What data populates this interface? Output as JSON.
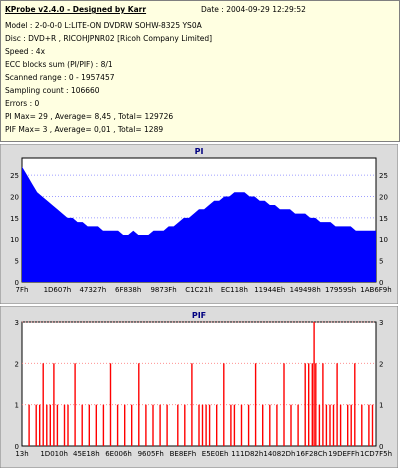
{
  "info": {
    "title": "KProbe v2.4.0 - Designed by Karr",
    "date": "Date : 2004-09-29 12:29:52",
    "lines": [
      "Model : 2-0-0-0 L:LITE-ON DVDRW SOHW-8325  YS0A",
      "Disc : DVD+R , RICOHJPNR02 [Ricoh Company Limited]",
      "Speed : 4x",
      "ECC blocks sum (PI/PIF) : 8/1",
      "Scanned range : 0 - 1957457",
      "Sampling count : 106660",
      "Errors : 0",
      "PI Max= 29 ,  Average= 8,45 ,  Total= 129726",
      "PIF Max= 3 ,  Average= 0,01 ,  Total= 1289"
    ]
  },
  "colors": {
    "panel_bg": "#ffffe1",
    "chart_bg": "#ffffff",
    "frame_bg": "#dcdcdc",
    "pi_fill": "#0000ff",
    "pif_fill": "#ff0000",
    "pi_grid": "#8080ff",
    "pif_grid": "#ff8080",
    "title_color": "#000080"
  },
  "chart_data": [
    {
      "type": "area",
      "title": "PI",
      "ylim": [
        0,
        29
      ],
      "yticks": [
        0,
        5,
        10,
        15,
        20,
        25
      ],
      "x_tick_labels": [
        "7Fh",
        "1D607h",
        "47327h",
        "6F838h",
        "9873Fh",
        "C1C21h",
        "EC118h",
        "11944Eh",
        "149498h",
        "17959Sh",
        "1AB6F9h"
      ],
      "grid": true,
      "series": [
        {
          "values": [
            27,
            25,
            23,
            21,
            20,
            19,
            18,
            17,
            16,
            15,
            15,
            14,
            14,
            13,
            13,
            13,
            12,
            12,
            12,
            12,
            11,
            11,
            12,
            11,
            11,
            11,
            12,
            12,
            12,
            13,
            13,
            14,
            15,
            15,
            16,
            17,
            17,
            18,
            19,
            19,
            20,
            20,
            21,
            21,
            21,
            20,
            20,
            19,
            19,
            18,
            18,
            17,
            17,
            17,
            16,
            16,
            16,
            15,
            15,
            14,
            14,
            14,
            13,
            13,
            13,
            13,
            12,
            12,
            12,
            12,
            12
          ]
        }
      ]
    },
    {
      "type": "bar",
      "title": "PIF",
      "ylim": [
        0,
        3
      ],
      "yticks": [
        0,
        1,
        2,
        3
      ],
      "x_tick_labels": [
        "13h",
        "1D010h",
        "45E18h",
        "6E006h",
        "9605Fh",
        "BE8EFh",
        "E5E0Eh",
        "111D82h",
        "14082Dh",
        "16F28Ch",
        "19DEFFh",
        "1CD7F5h"
      ],
      "grid": true,
      "series": [
        {
          "points": [
            [
              0.02,
              1
            ],
            [
              0.04,
              1
            ],
            [
              0.05,
              1
            ],
            [
              0.06,
              2
            ],
            [
              0.07,
              1
            ],
            [
              0.08,
              1
            ],
            [
              0.09,
              2
            ],
            [
              0.1,
              1
            ],
            [
              0.12,
              1
            ],
            [
              0.13,
              1
            ],
            [
              0.15,
              2
            ],
            [
              0.17,
              1
            ],
            [
              0.19,
              1
            ],
            [
              0.21,
              1
            ],
            [
              0.23,
              1
            ],
            [
              0.25,
              2
            ],
            [
              0.27,
              1
            ],
            [
              0.29,
              1
            ],
            [
              0.31,
              1
            ],
            [
              0.33,
              2
            ],
            [
              0.35,
              1
            ],
            [
              0.37,
              1
            ],
            [
              0.39,
              1
            ],
            [
              0.41,
              1
            ],
            [
              0.44,
              1
            ],
            [
              0.46,
              1
            ],
            [
              0.48,
              2
            ],
            [
              0.5,
              1
            ],
            [
              0.51,
              1
            ],
            [
              0.52,
              1
            ],
            [
              0.53,
              1
            ],
            [
              0.55,
              1
            ],
            [
              0.57,
              2
            ],
            [
              0.59,
              1
            ],
            [
              0.6,
              1
            ],
            [
              0.62,
              1
            ],
            [
              0.64,
              1
            ],
            [
              0.66,
              2
            ],
            [
              0.68,
              1
            ],
            [
              0.7,
              1
            ],
            [
              0.72,
              1
            ],
            [
              0.74,
              2
            ],
            [
              0.76,
              1
            ],
            [
              0.78,
              1
            ],
            [
              0.8,
              2
            ],
            [
              0.81,
              2
            ],
            [
              0.82,
              2
            ],
            [
              0.83,
              2
            ],
            [
              0.84,
              1
            ],
            [
              0.85,
              2
            ],
            [
              0.86,
              1
            ],
            [
              0.87,
              1
            ],
            [
              0.88,
              1
            ],
            [
              0.89,
              2
            ],
            [
              0.9,
              1
            ],
            [
              0.92,
              1
            ],
            [
              0.93,
              1
            ],
            [
              0.94,
              2
            ],
            [
              0.96,
              1
            ],
            [
              0.98,
              1
            ],
            [
              0.99,
              1
            ],
            [
              0.825,
              3
            ]
          ]
        }
      ]
    }
  ]
}
